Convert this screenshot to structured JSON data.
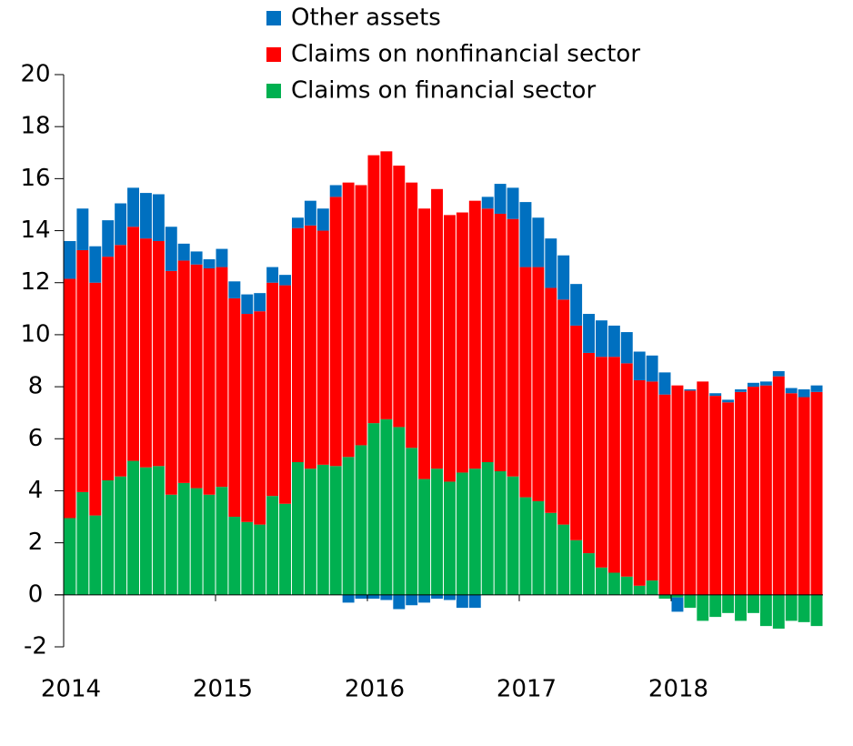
{
  "chart_data": {
    "type": "stacked-bar",
    "categories": [
      "2014",
      null,
      null,
      null,
      null,
      null,
      null,
      null,
      null,
      null,
      null,
      null,
      "2015",
      null,
      null,
      null,
      null,
      null,
      null,
      null,
      null,
      null,
      null,
      null,
      "2016",
      null,
      null,
      null,
      null,
      null,
      null,
      null,
      null,
      null,
      null,
      null,
      "2017",
      null,
      null,
      null,
      null,
      null,
      null,
      null,
      null,
      null,
      null,
      null,
      "2018",
      null,
      null,
      null,
      null,
      null,
      null,
      null,
      null,
      null,
      null,
      null
    ],
    "series": [
      {
        "name": "Other assets",
        "color": "#0070c0",
        "values": [
          1.45,
          1.6,
          1.4,
          1.4,
          1.6,
          1.5,
          1.75,
          1.8,
          1.7,
          0.65,
          0.5,
          0.35,
          0.7,
          0.65,
          0.75,
          0.7,
          0.6,
          0.4,
          0.4,
          0.95,
          0.85,
          0.45,
          -0.3,
          -0.15,
          -0.15,
          -0.2,
          -0.55,
          -0.4,
          -0.3,
          -0.15,
          -0.2,
          -0.5,
          -0.5,
          0.45,
          1.15,
          1.2,
          2.5,
          1.9,
          1.9,
          1.7,
          1.6,
          1.5,
          1.4,
          1.2,
          1.2,
          1.1,
          1.0,
          0.85,
          -0.55,
          0.05,
          0,
          0.1,
          0.1,
          0.1,
          0.15,
          0.15,
          0.2,
          0.2,
          0.3,
          0.25
        ]
      },
      {
        "name": "Claims on nonfinancial sector",
        "color": "#ff0000",
        "values": [
          9.2,
          9.3,
          8.95,
          8.6,
          8.9,
          9.0,
          8.8,
          8.65,
          8.6,
          8.55,
          8.6,
          8.7,
          8.45,
          8.4,
          8.0,
          8.2,
          8.2,
          8.4,
          9.0,
          9.35,
          9.0,
          10.35,
          10.55,
          10.0,
          10.3,
          10.3,
          10.05,
          10.2,
          10.4,
          10.75,
          10.25,
          10.0,
          10.3,
          9.75,
          9.9,
          9.9,
          8.85,
          9.0,
          8.65,
          8.65,
          8.25,
          7.7,
          8.1,
          8.3,
          8.2,
          7.9,
          7.65,
          7.7,
          8.05,
          7.85,
          8.2,
          7.65,
          7.4,
          7.8,
          8.0,
          8.05,
          8.4,
          7.75,
          7.6,
          7.8
        ]
      },
      {
        "name": "Claims on financial sector",
        "color": "#00b050",
        "values": [
          2.95,
          3.95,
          3.05,
          4.4,
          4.55,
          5.15,
          4.9,
          4.95,
          3.85,
          4.3,
          4.1,
          3.85,
          4.15,
          3.0,
          2.8,
          2.7,
          3.8,
          3.5,
          5.1,
          4.85,
          5.0,
          4.95,
          5.3,
          5.75,
          6.6,
          6.75,
          6.45,
          5.65,
          4.45,
          4.85,
          4.35,
          4.7,
          4.85,
          5.1,
          4.75,
          4.55,
          3.75,
          3.6,
          3.15,
          2.7,
          2.1,
          1.6,
          1.05,
          0.85,
          0.7,
          0.35,
          0.55,
          -0.15,
          -0.1,
          -0.5,
          -1.0,
          -0.85,
          -0.7,
          -1.0,
          -0.7,
          -1.2,
          -1.3,
          -1.0,
          -1.05,
          -1.2
        ]
      }
    ],
    "ylim": [
      -2,
      20
    ],
    "yticks": [
      -2,
      0,
      2,
      4,
      6,
      8,
      10,
      12,
      14,
      16,
      18,
      20
    ]
  }
}
